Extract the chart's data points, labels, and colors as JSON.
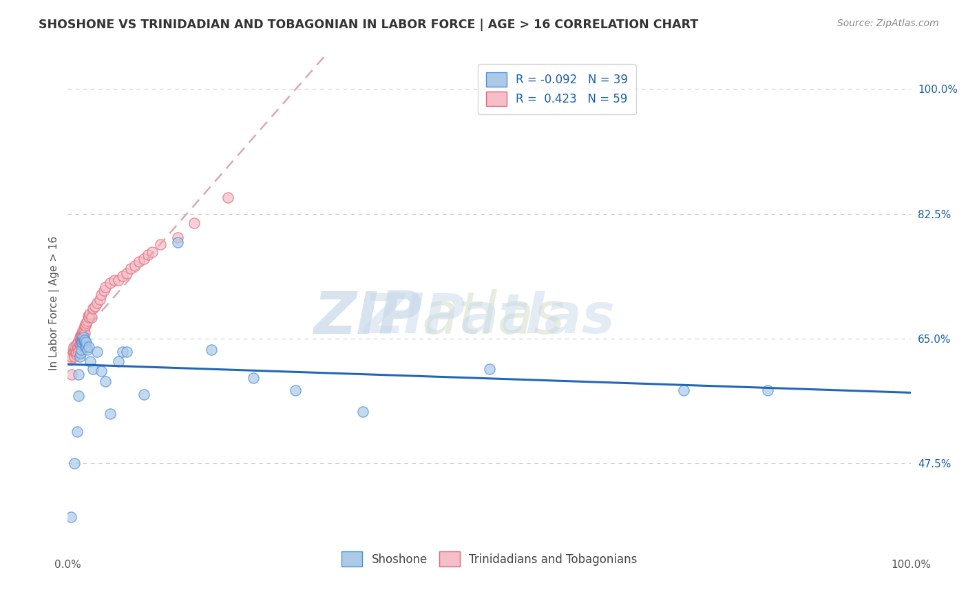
{
  "title": "SHOSHONE VS TRINIDADIAN AND TOBAGONIAN IN LABOR FORCE | AGE > 16 CORRELATION CHART",
  "source_text": "Source: ZipAtlas.com",
  "ylabel": "In Labor Force | Age > 16",
  "xlim": [
    0.0,
    1.0
  ],
  "ylim": [
    0.35,
    1.05
  ],
  "x_tick_positions": [
    0.0,
    0.25,
    0.5,
    0.75,
    1.0
  ],
  "x_tick_labels": [
    "0.0%",
    "",
    "",
    "",
    "100.0%"
  ],
  "y_tick_labels_right": [
    "100.0%",
    "82.5%",
    "65.0%",
    "47.5%"
  ],
  "y_tick_positions_right": [
    1.0,
    0.825,
    0.65,
    0.475
  ],
  "watermark_zip": "ZIP",
  "watermark_atlas": "atlas",
  "legend_r1": "R = -0.092",
  "legend_n1": "N = 39",
  "legend_r2": "R =  0.423",
  "legend_n2": "N = 59",
  "shoshone_color": "#adc9e8",
  "shoshone_edge_color": "#4a90d9",
  "shoshone_line_color": "#2266bb",
  "trinidadian_color": "#f5bec8",
  "trinidadian_edge_color": "#e06878",
  "trinidadian_line_color": "#cc4466",
  "trinidadian_trend_color": "#dba8b0",
  "dot_size": 120,
  "dot_alpha": 0.7,
  "shoshone_x": [
    0.004,
    0.008,
    0.011,
    0.013,
    0.013,
    0.014,
    0.015,
    0.016,
    0.016,
    0.017,
    0.018,
    0.018,
    0.019,
    0.019,
    0.02,
    0.02,
    0.021,
    0.022,
    0.022,
    0.023,
    0.025,
    0.027,
    0.03,
    0.035,
    0.04,
    0.045,
    0.05,
    0.06,
    0.065,
    0.07,
    0.09,
    0.13,
    0.17,
    0.22,
    0.27,
    0.35,
    0.5,
    0.73,
    0.83
  ],
  "shoshone_y": [
    0.4,
    0.475,
    0.52,
    0.57,
    0.6,
    0.625,
    0.63,
    0.635,
    0.645,
    0.645,
    0.648,
    0.652,
    0.648,
    0.652,
    0.645,
    0.648,
    0.638,
    0.638,
    0.645,
    0.635,
    0.638,
    0.618,
    0.608,
    0.632,
    0.605,
    0.59,
    0.545,
    0.618,
    0.632,
    0.632,
    0.572,
    0.785,
    0.635,
    0.595,
    0.578,
    0.548,
    0.608,
    0.578,
    0.578
  ],
  "trinidadian_x": [
    0.003,
    0.004,
    0.005,
    0.006,
    0.007,
    0.007,
    0.008,
    0.009,
    0.009,
    0.01,
    0.01,
    0.011,
    0.011,
    0.012,
    0.012,
    0.013,
    0.013,
    0.014,
    0.014,
    0.015,
    0.015,
    0.015,
    0.016,
    0.016,
    0.017,
    0.018,
    0.018,
    0.019,
    0.02,
    0.02,
    0.021,
    0.022,
    0.023,
    0.024,
    0.025,
    0.026,
    0.028,
    0.03,
    0.032,
    0.035,
    0.038,
    0.04,
    0.043,
    0.045,
    0.05,
    0.055,
    0.06,
    0.065,
    0.07,
    0.075,
    0.08,
    0.085,
    0.09,
    0.095,
    0.1,
    0.11,
    0.13,
    0.15,
    0.19
  ],
  "trinidadian_y": [
    0.62,
    0.625,
    0.6,
    0.632,
    0.632,
    0.638,
    0.625,
    0.632,
    0.638,
    0.628,
    0.632,
    0.638,
    0.642,
    0.638,
    0.645,
    0.632,
    0.645,
    0.642,
    0.652,
    0.642,
    0.648,
    0.655,
    0.648,
    0.655,
    0.655,
    0.658,
    0.662,
    0.662,
    0.658,
    0.668,
    0.668,
    0.672,
    0.675,
    0.682,
    0.68,
    0.685,
    0.68,
    0.692,
    0.695,
    0.7,
    0.705,
    0.712,
    0.718,
    0.722,
    0.728,
    0.732,
    0.732,
    0.738,
    0.742,
    0.748,
    0.752,
    0.758,
    0.762,
    0.768,
    0.772,
    0.782,
    0.792,
    0.812,
    0.848
  ],
  "background_color": "#ffffff",
  "grid_color": "#cccccc",
  "legend_text_color": "#1a5fa8",
  "title_color": "#333333",
  "source_color": "#888888",
  "watermark_color": "#c8d8ea",
  "axis_label_color": "#555555"
}
